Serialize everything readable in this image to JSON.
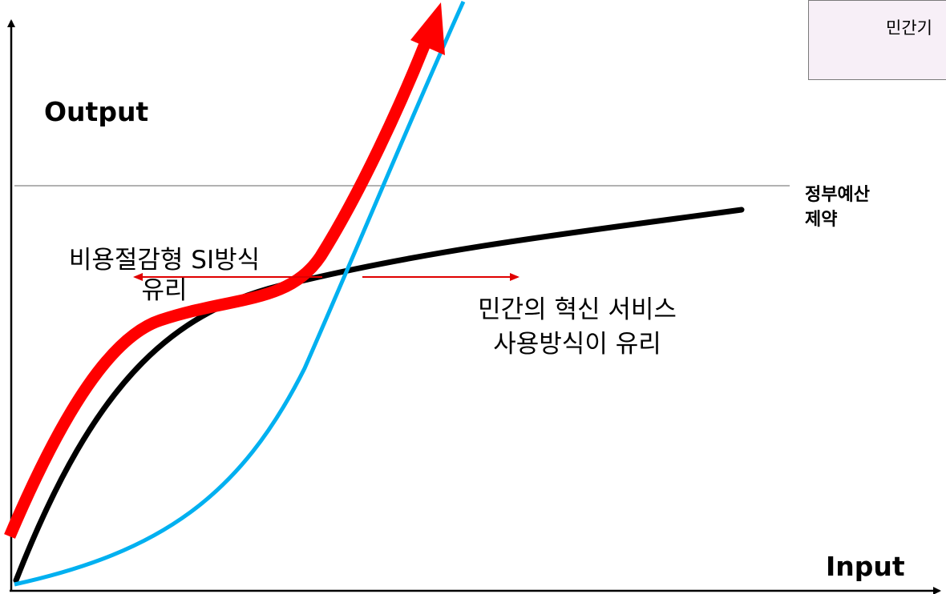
{
  "axes": {
    "y_label": "Output",
    "x_label": "Input"
  },
  "budget_line": {
    "label_line1": "정부예산",
    "label_line2": "제약",
    "color": "#999999"
  },
  "si_region": {
    "line1": "비용절감형 SI방식",
    "line2": "유리"
  },
  "innovation_region": {
    "line1": "민간의 혁신 서비스",
    "line2": "사용방식이 유리"
  },
  "callout": {
    "text": "민간기"
  },
  "curves": {
    "red": {
      "name": "",
      "color": "#ff0000"
    },
    "black": {
      "name": "",
      "color": "#000000"
    },
    "blue": {
      "name": "",
      "color": "#00b0f0"
    }
  },
  "arrows": {
    "color": "#e00000"
  }
}
